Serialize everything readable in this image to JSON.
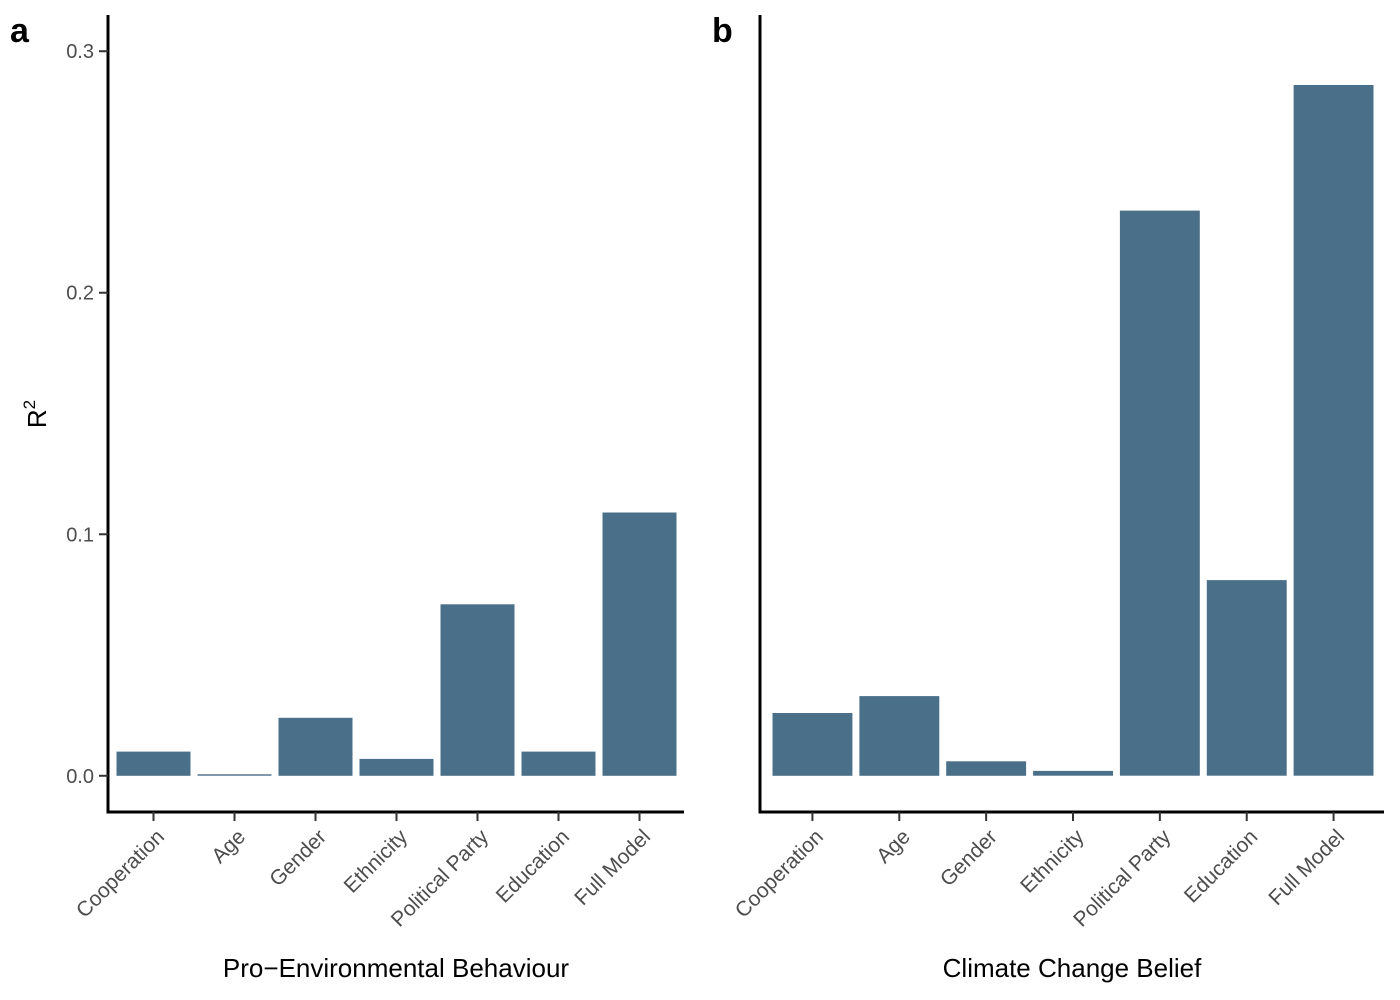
{
  "colors": {
    "bar": "#4a6f89"
  },
  "chart_data": [
    {
      "type": "bar",
      "panel": "a",
      "categories": [
        "Cooperation",
        "Age",
        "Gender",
        "Ethnicity",
        "Political Party",
        "Education",
        "Full Model"
      ],
      "values": [
        0.01,
        0.0006,
        0.024,
        0.007,
        0.071,
        0.01,
        0.109
      ],
      "title": "",
      "xlabel": "Pro−Environmental Behaviour",
      "ylabel": "R",
      "ylabel_superscript": "2",
      "ylim": [
        -0.015,
        0.315
      ],
      "yticks": [
        0.0,
        0.1,
        0.2,
        0.3
      ],
      "ytick_labels": [
        "0.0",
        "0.1",
        "0.2",
        "0.3"
      ],
      "grid": false,
      "legend": "none"
    },
    {
      "type": "bar",
      "panel": "b",
      "categories": [
        "Cooperation",
        "Age",
        "Gender",
        "Ethnicity",
        "Political Party",
        "Education",
        "Full Model"
      ],
      "values": [
        0.026,
        0.033,
        0.006,
        0.002,
        0.234,
        0.081,
        0.286
      ],
      "title": "",
      "xlabel": "Climate Change Belief",
      "ylim": [
        -0.015,
        0.315
      ],
      "grid": false,
      "legend": "none"
    }
  ]
}
